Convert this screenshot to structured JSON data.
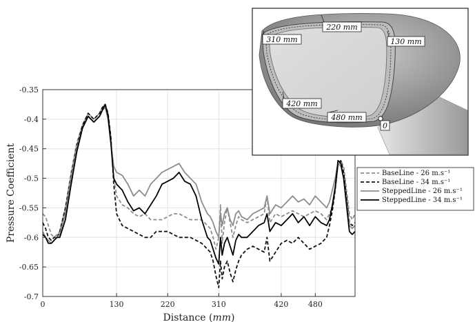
{
  "chart_data": {
    "type": "line",
    "xlabel": "Distance",
    "xlabel_unit": "mm",
    "ylabel": "Pressure Coefficient",
    "xlim": [
      0,
      550
    ],
    "ylim": [
      -0.7,
      -0.35
    ],
    "y_inverted": true,
    "x_ticks": [
      0,
      130,
      220,
      310,
      420,
      480
    ],
    "y_ticks": [
      -0.35,
      -0.4,
      -0.45,
      -0.5,
      -0.55,
      -0.6,
      -0.65,
      -0.7
    ],
    "grid": true,
    "legend_position": "right",
    "series": [
      {
        "name": "BaseLine - 26 m.s⁻¹",
        "style": "dashed",
        "color": "#8c8c8c",
        "x": [
          0,
          5,
          10,
          15,
          20,
          25,
          30,
          40,
          50,
          60,
          70,
          75,
          80,
          85,
          90,
          95,
          100,
          105,
          110,
          115,
          120,
          125,
          130,
          140,
          150,
          160,
          170,
          180,
          190,
          200,
          210,
          220,
          230,
          240,
          250,
          260,
          270,
          280,
          290,
          295,
          300,
          305,
          310,
          313,
          316,
          320,
          325,
          330,
          335,
          340,
          345,
          350,
          360,
          370,
          380,
          390,
          395,
          400,
          410,
          420,
          430,
          440,
          450,
          460,
          470,
          480,
          490,
          500,
          505,
          510,
          515,
          520,
          525,
          530,
          535,
          540,
          545,
          550
        ],
        "values": [
          -0.56,
          -0.565,
          -0.58,
          -0.595,
          -0.6,
          -0.595,
          -0.59,
          -0.55,
          -0.49,
          -0.44,
          -0.41,
          -0.4,
          -0.39,
          -0.395,
          -0.4,
          -0.395,
          -0.39,
          -0.38,
          -0.375,
          -0.39,
          -0.43,
          -0.5,
          -0.53,
          -0.545,
          -0.55,
          -0.56,
          -0.565,
          -0.56,
          -0.57,
          -0.57,
          -0.57,
          -0.565,
          -0.56,
          -0.56,
          -0.565,
          -0.57,
          -0.57,
          -0.57,
          -0.58,
          -0.585,
          -0.6,
          -0.62,
          -0.6,
          -0.545,
          -0.61,
          -0.575,
          -0.55,
          -0.575,
          -0.6,
          -0.58,
          -0.565,
          -0.57,
          -0.575,
          -0.57,
          -0.565,
          -0.56,
          -0.53,
          -0.575,
          -0.56,
          -0.565,
          -0.56,
          -0.555,
          -0.56,
          -0.565,
          -0.56,
          -0.555,
          -0.56,
          -0.57,
          -0.56,
          -0.55,
          -0.52,
          -0.48,
          -0.47,
          -0.48,
          -0.52,
          -0.56,
          -0.57,
          -0.56
        ]
      },
      {
        "name": "BaseLine - 34 m.s⁻¹",
        "style": "dashed",
        "color": "#111111",
        "x": [
          0,
          5,
          10,
          15,
          20,
          25,
          30,
          40,
          50,
          60,
          70,
          75,
          80,
          85,
          90,
          95,
          100,
          105,
          110,
          115,
          120,
          125,
          130,
          140,
          150,
          160,
          170,
          180,
          190,
          200,
          210,
          220,
          230,
          240,
          250,
          260,
          270,
          280,
          290,
          295,
          300,
          305,
          310,
          313,
          316,
          320,
          325,
          330,
          335,
          340,
          345,
          350,
          360,
          370,
          380,
          390,
          395,
          400,
          410,
          420,
          430,
          440,
          450,
          460,
          470,
          480,
          490,
          500,
          505,
          510,
          515,
          520,
          525,
          530,
          535,
          540,
          545,
          550
        ],
        "values": [
          -0.575,
          -0.585,
          -0.6,
          -0.605,
          -0.6,
          -0.6,
          -0.59,
          -0.55,
          -0.495,
          -0.445,
          -0.41,
          -0.4,
          -0.39,
          -0.395,
          -0.4,
          -0.395,
          -0.39,
          -0.38,
          -0.375,
          -0.39,
          -0.43,
          -0.51,
          -0.56,
          -0.58,
          -0.585,
          -0.59,
          -0.595,
          -0.6,
          -0.6,
          -0.59,
          -0.59,
          -0.59,
          -0.595,
          -0.6,
          -0.6,
          -0.6,
          -0.605,
          -0.61,
          -0.62,
          -0.625,
          -0.64,
          -0.665,
          -0.685,
          -0.64,
          -0.67,
          -0.65,
          -0.64,
          -0.66,
          -0.675,
          -0.655,
          -0.64,
          -0.63,
          -0.62,
          -0.615,
          -0.62,
          -0.625,
          -0.6,
          -0.64,
          -0.625,
          -0.61,
          -0.605,
          -0.61,
          -0.6,
          -0.61,
          -0.62,
          -0.615,
          -0.61,
          -0.6,
          -0.58,
          -0.555,
          -0.52,
          -0.475,
          -0.47,
          -0.49,
          -0.53,
          -0.575,
          -0.58,
          -0.575
        ]
      },
      {
        "name": "SteppedLine - 26 m.s⁻¹",
        "style": "solid",
        "color": "#8c8c8c",
        "x": [
          0,
          5,
          10,
          15,
          20,
          25,
          30,
          40,
          50,
          60,
          70,
          75,
          80,
          85,
          90,
          95,
          100,
          105,
          110,
          115,
          120,
          125,
          130,
          140,
          150,
          160,
          170,
          180,
          190,
          200,
          210,
          220,
          230,
          240,
          250,
          260,
          270,
          280,
          290,
          295,
          300,
          305,
          310,
          313,
          316,
          320,
          325,
          330,
          335,
          340,
          345,
          350,
          360,
          370,
          380,
          390,
          395,
          400,
          410,
          420,
          430,
          440,
          450,
          460,
          470,
          480,
          490,
          500,
          505,
          510,
          515,
          520,
          525,
          530,
          535,
          540,
          545,
          550
        ],
        "values": [
          -0.59,
          -0.6,
          -0.605,
          -0.61,
          -0.605,
          -0.6,
          -0.595,
          -0.56,
          -0.5,
          -0.45,
          -0.415,
          -0.405,
          -0.395,
          -0.4,
          -0.405,
          -0.4,
          -0.395,
          -0.385,
          -0.38,
          -0.4,
          -0.44,
          -0.48,
          -0.49,
          -0.495,
          -0.51,
          -0.53,
          -0.52,
          -0.53,
          -0.51,
          -0.5,
          -0.49,
          -0.485,
          -0.48,
          -0.475,
          -0.49,
          -0.5,
          -0.51,
          -0.54,
          -0.56,
          -0.565,
          -0.575,
          -0.59,
          -0.6,
          -0.56,
          -0.58,
          -0.56,
          -0.55,
          -0.57,
          -0.58,
          -0.56,
          -0.555,
          -0.565,
          -0.57,
          -0.56,
          -0.555,
          -0.55,
          -0.53,
          -0.56,
          -0.545,
          -0.55,
          -0.54,
          -0.53,
          -0.54,
          -0.535,
          -0.545,
          -0.53,
          -0.54,
          -0.55,
          -0.54,
          -0.52,
          -0.5,
          -0.475,
          -0.48,
          -0.5,
          -0.54,
          -0.58,
          -0.585,
          -0.58
        ]
      },
      {
        "name": "SteppedLine - 34 m.s⁻¹",
        "style": "solid",
        "color": "#000000",
        "x": [
          0,
          5,
          10,
          15,
          20,
          25,
          30,
          40,
          50,
          60,
          70,
          75,
          80,
          85,
          90,
          95,
          100,
          105,
          110,
          115,
          120,
          125,
          130,
          140,
          150,
          160,
          170,
          180,
          190,
          200,
          210,
          220,
          230,
          240,
          250,
          260,
          270,
          280,
          290,
          295,
          300,
          305,
          310,
          313,
          316,
          320,
          325,
          330,
          335,
          340,
          345,
          350,
          360,
          370,
          380,
          390,
          395,
          400,
          410,
          420,
          430,
          440,
          450,
          460,
          470,
          480,
          490,
          500,
          505,
          510,
          515,
          520,
          525,
          530,
          535,
          540,
          545,
          550
        ],
        "values": [
          -0.595,
          -0.6,
          -0.61,
          -0.61,
          -0.605,
          -0.6,
          -0.6,
          -0.57,
          -0.51,
          -0.455,
          -0.415,
          -0.405,
          -0.395,
          -0.4,
          -0.405,
          -0.4,
          -0.395,
          -0.385,
          -0.375,
          -0.395,
          -0.44,
          -0.5,
          -0.51,
          -0.52,
          -0.54,
          -0.555,
          -0.55,
          -0.56,
          -0.545,
          -0.53,
          -0.51,
          -0.505,
          -0.5,
          -0.49,
          -0.505,
          -0.51,
          -0.53,
          -0.57,
          -0.6,
          -0.605,
          -0.62,
          -0.635,
          -0.645,
          -0.6,
          -0.63,
          -0.61,
          -0.6,
          -0.615,
          -0.63,
          -0.605,
          -0.595,
          -0.6,
          -0.6,
          -0.59,
          -0.58,
          -0.575,
          -0.56,
          -0.59,
          -0.575,
          -0.58,
          -0.57,
          -0.56,
          -0.575,
          -0.565,
          -0.58,
          -0.565,
          -0.575,
          -0.58,
          -0.57,
          -0.545,
          -0.515,
          -0.47,
          -0.475,
          -0.5,
          -0.545,
          -0.59,
          -0.595,
          -0.59
        ]
      }
    ]
  },
  "inset": {
    "labels": [
      {
        "text": "220 mm"
      },
      {
        "text": "310 mm"
      },
      {
        "text": "130 mm"
      },
      {
        "text": "420 mm"
      },
      {
        "text": "480 mm"
      },
      {
        "text": "0"
      }
    ]
  }
}
